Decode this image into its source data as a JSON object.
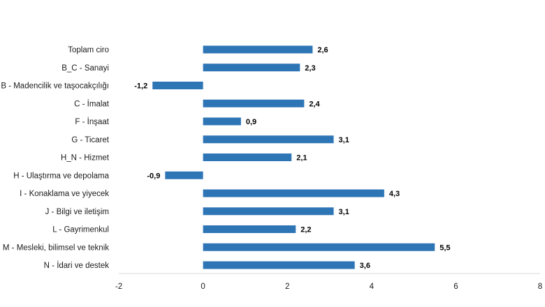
{
  "chart_data": {
    "type": "bar",
    "orientation": "horizontal",
    "categories": [
      "Toplam ciro",
      "B_C - Sanayi",
      "B - Madencilik ve taşocakçılığı",
      "C - İmalat",
      "F - İnşaat",
      "G - Ticaret",
      "H_N - Hizmet",
      "H - Ulaştırma ve depolama",
      "I - Konaklama ve yiyecek",
      "J - Bilgi ve iletişim",
      "L - Gayrimenkul",
      "M - Mesleki, bilimsel ve teknik",
      "N - İdari ve destek"
    ],
    "values": [
      2.6,
      2.3,
      -1.2,
      2.4,
      0.9,
      3.1,
      2.1,
      -0.9,
      4.3,
      3.1,
      2.2,
      5.5,
      3.6
    ],
    "value_labels": [
      "2,6",
      "2,3",
      "-1,2",
      "2,4",
      "0,9",
      "3,1",
      "2,1",
      "-0,9",
      "4,3",
      "3,1",
      "2,2",
      "5,5",
      "3,6"
    ],
    "xlim": [
      -2,
      8
    ],
    "x_ticks": [
      -2,
      0,
      2,
      4,
      6,
      8
    ],
    "x_tick_labels": [
      "-2",
      "0",
      "2",
      "4",
      "6",
      "8"
    ],
    "title": "",
    "xlabel": "",
    "ylabel": "",
    "grid": false,
    "legend": "none",
    "bar_color": "#2E75B6"
  }
}
